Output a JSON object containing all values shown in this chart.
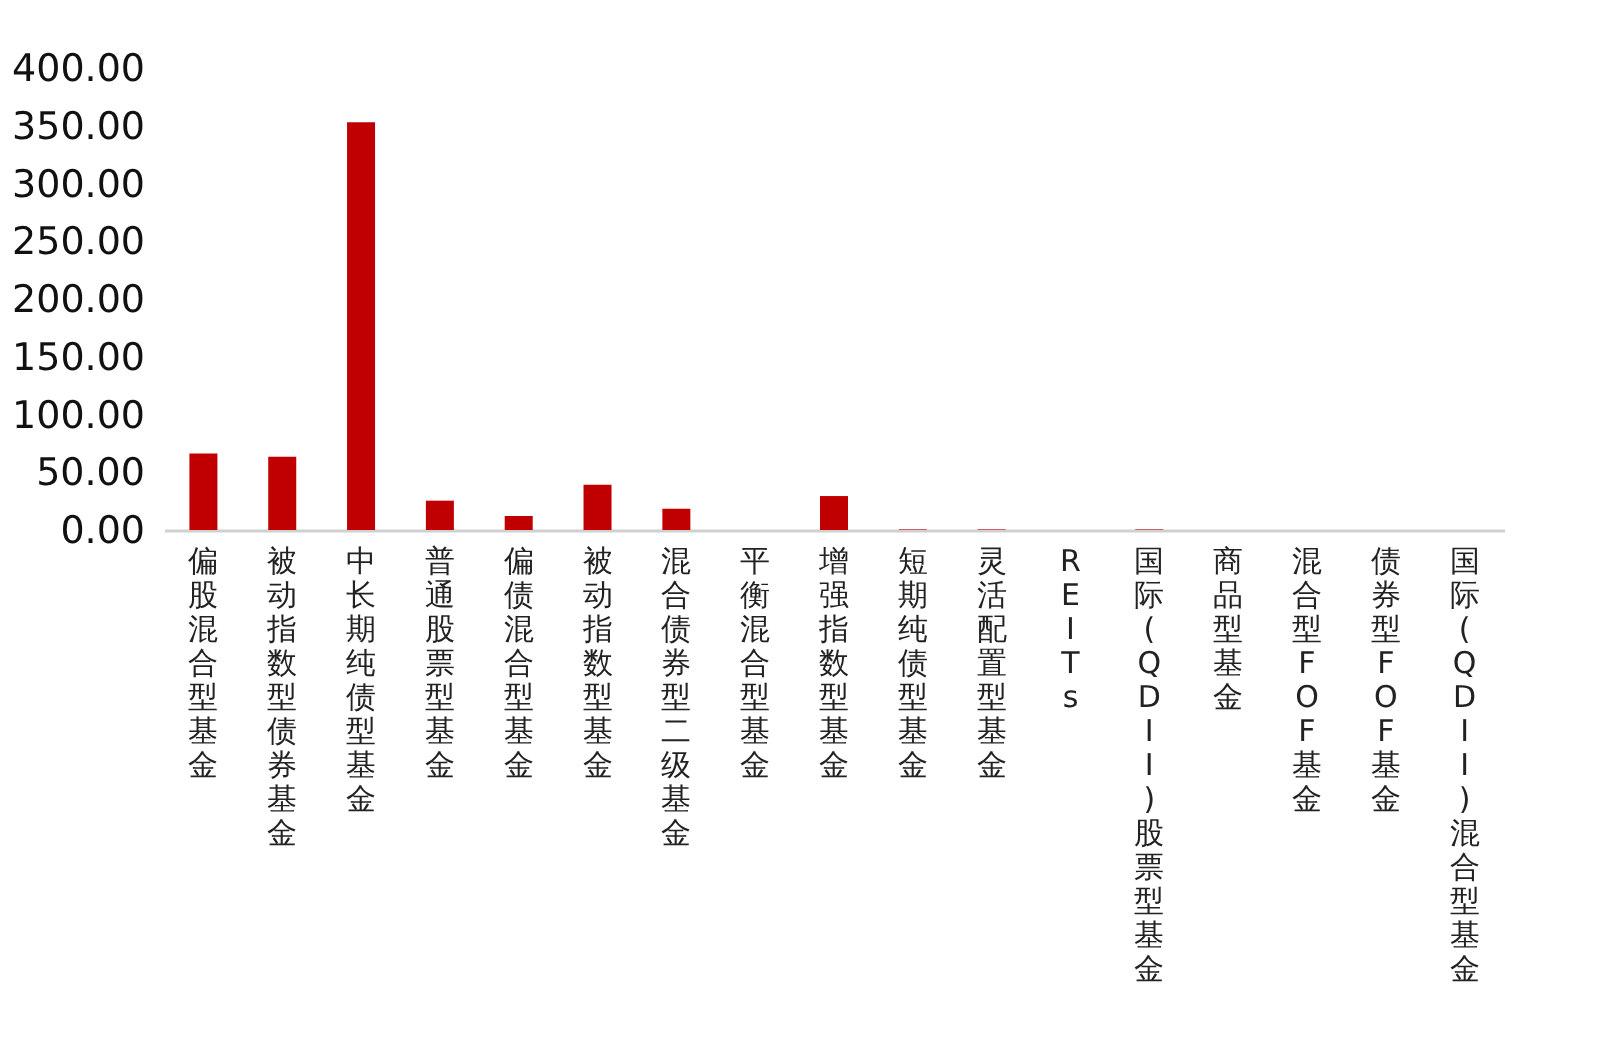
{
  "chart_data": {
    "type": "bar",
    "categories": [
      "偏股混合型基金",
      "被动指数型债券基金",
      "中长期纯债型基金",
      "普通股票型基金",
      "偏债混合型基金",
      "被动指数型基金",
      "混合债券型二级基金",
      "平衡混合型基金",
      "增强指数型基金",
      "短期纯债型基金",
      "灵活配置型基金",
      "REITs",
      "国际(QDII)股票型基金",
      "商品型基金",
      "混合型FOF基金",
      "债券型FOF基金",
      "国际(QDII)混合型基金"
    ],
    "values": [
      66.3,
      63.4,
      353,
      25.4,
      12.1,
      39.2,
      18.4,
      0,
      29.4,
      0.5,
      0.5,
      0,
      0.5,
      0,
      0,
      0,
      0
    ],
    "color": "#c00000",
    "ylim": [
      0,
      400
    ],
    "yticks": [
      {
        "value": 0,
        "label": "0.00"
      },
      {
        "value": 50,
        "label": "50.00"
      },
      {
        "value": 100,
        "label": "100.00"
      },
      {
        "value": 150,
        "label": "150.00"
      },
      {
        "value": 200,
        "label": "200.00"
      },
      {
        "value": 250,
        "label": "250.00"
      },
      {
        "value": 300,
        "label": "300.00"
      },
      {
        "value": 350,
        "label": "350.00"
      },
      {
        "value": 400,
        "label": "400.00"
      }
    ],
    "grid": false
  }
}
